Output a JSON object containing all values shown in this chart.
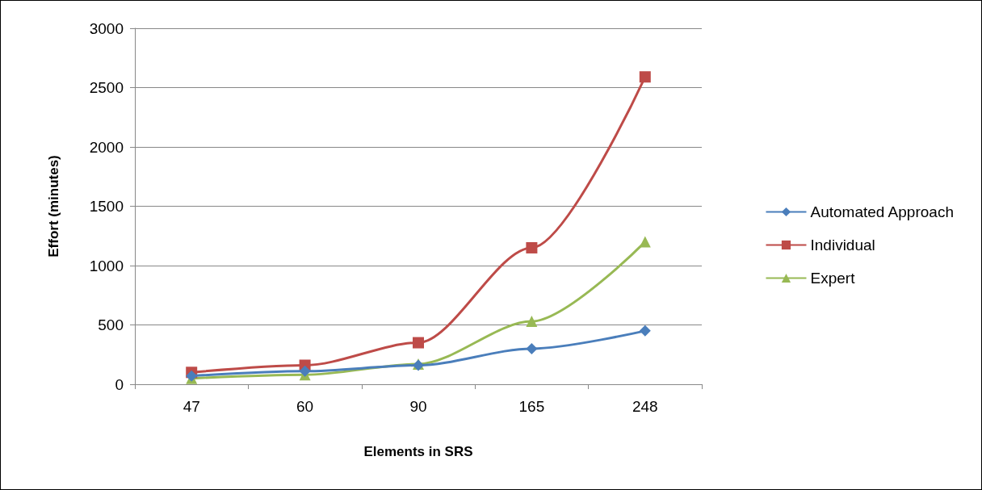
{
  "chart_data": {
    "type": "line",
    "xlabel": "Elements in SRS",
    "ylabel": "Effort (minutes)",
    "categories": [
      "47",
      "60",
      "90",
      "165",
      "248"
    ],
    "series": [
      {
        "name": "Automated Approach",
        "color": "#4a7ebb",
        "marker": "diamond",
        "values": [
          70,
          110,
          160,
          300,
          450
        ]
      },
      {
        "name": "Individual",
        "color": "#be4b48",
        "marker": "square",
        "values": [
          100,
          160,
          350,
          1150,
          2590
        ]
      },
      {
        "name": "Expert",
        "color": "#98b954",
        "marker": "triangle",
        "values": [
          50,
          80,
          170,
          530,
          1200
        ]
      }
    ],
    "ylim": [
      0,
      3000
    ],
    "yticks": [
      0,
      500,
      1000,
      1500,
      2000,
      2500,
      3000
    ],
    "grid": "y",
    "legend": "right"
  }
}
